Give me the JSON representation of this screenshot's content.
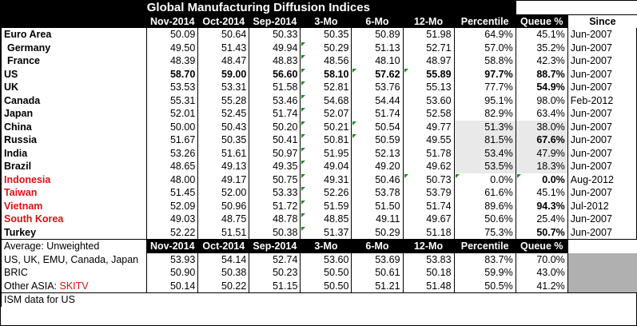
{
  "title": "Global Manufacturing Diffusion Indices",
  "columns": [
    "Nov-2014",
    "Oct-2014",
    "Sep-2014",
    "3-Mo",
    "6-Mo",
    "12-Mo",
    "Percentile",
    "Queue %",
    "Since"
  ],
  "rows": [
    {
      "name": "Euro Area",
      "v": [
        "50.09",
        "50.64",
        "50.33",
        "50.35",
        "50.89",
        "51.98",
        "64.9%",
        "45.1%"
      ],
      "since": "Jun-2007"
    },
    {
      "name": "Germany",
      "v": [
        "49.50",
        "51.43",
        "49.94",
        "50.29",
        "51.13",
        "52.71",
        "57.0%",
        "35.2%"
      ],
      "since": "Jun-2007"
    },
    {
      "name": "France",
      "v": [
        "48.39",
        "48.47",
        "48.83",
        "48.56",
        "48.10",
        "48.97",
        "58.8%",
        "42.3%"
      ],
      "since": "Jun-2007"
    },
    {
      "name": "US",
      "v": [
        "58.70",
        "59.00",
        "56.60",
        "58.10",
        "57.62",
        "55.89",
        "97.7%",
        "88.7%"
      ],
      "since": "Jun-2007"
    },
    {
      "name": "UK",
      "v": [
        "53.53",
        "53.31",
        "51.58",
        "52.81",
        "53.76",
        "55.13",
        "77.7%",
        "54.9%"
      ],
      "since": "Jun-2007"
    },
    {
      "name": "Canada",
      "v": [
        "55.31",
        "55.28",
        "53.46",
        "54.68",
        "54.44",
        "53.60",
        "95.1%",
        "98.0%"
      ],
      "since": "Feb-2012"
    },
    {
      "name": "Japan",
      "v": [
        "52.01",
        "52.45",
        "51.74",
        "52.07",
        "51.74",
        "52.58",
        "82.9%",
        "63.4%"
      ],
      "since": "Jun-2007"
    },
    {
      "name": "China",
      "v": [
        "50.00",
        "50.43",
        "50.20",
        "50.21",
        "50.54",
        "49.77",
        "51.3%",
        "38.0%"
      ],
      "since": "Jun-2007"
    },
    {
      "name": "Russia",
      "v": [
        "51.67",
        "50.35",
        "50.41",
        "50.81",
        "50.59",
        "49.55",
        "81.5%",
        "67.6%"
      ],
      "since": "Jun-2007"
    },
    {
      "name": "India",
      "v": [
        "53.26",
        "51.61",
        "50.97",
        "51.95",
        "52.13",
        "51.78",
        "53.4%",
        "47.9%"
      ],
      "since": "Jun-2007"
    },
    {
      "name": "Brazil",
      "v": [
        "48.65",
        "49.13",
        "49.35",
        "49.04",
        "49.20",
        "49.62",
        "53.5%",
        "18.3%"
      ],
      "since": "Jun-2007"
    },
    {
      "name": "Indonesia",
      "v": [
        "48.00",
        "49.17",
        "50.75",
        "49.31",
        "50.46",
        "50.73",
        "0.0%",
        "0.0%"
      ],
      "since": "Aug-2012"
    },
    {
      "name": "Taiwan",
      "v": [
        "51.45",
        "52.00",
        "53.33",
        "52.26",
        "53.78",
        "53.79",
        "61.6%",
        "45.1%"
      ],
      "since": "Jun-2007"
    },
    {
      "name": "Vietnam",
      "v": [
        "52.09",
        "50.96",
        "51.72",
        "51.59",
        "51.50",
        "51.74",
        "89.6%",
        "94.3%"
      ],
      "since": "Jul-2012"
    },
    {
      "name": "South Korea",
      "v": [
        "49.03",
        "48.75",
        "48.78",
        "48.85",
        "49.11",
        "49.67",
        "50.6%",
        "25.4%"
      ],
      "since": "Jun-2007"
    },
    {
      "name": "Turkey",
      "v": [
        "52.22",
        "51.51",
        "50.38",
        "51.37",
        "50.29",
        "51.18",
        "75.3%",
        "50.7%"
      ],
      "since": "Jun-2007"
    }
  ],
  "avg_header": "Average: Unweighted",
  "avg_rows": [
    {
      "name": "US, UK, EMU, Canada, Japan",
      "v": [
        "53.93",
        "54.14",
        "52.74",
        "53.60",
        "53.69",
        "53.83",
        "83.7%",
        "70.0%"
      ]
    },
    {
      "name": "BRIC",
      "v": [
        "50.90",
        "50.38",
        "50.23",
        "50.50",
        "50.61",
        "50.18",
        "59.9%",
        "43.0%"
      ]
    },
    {
      "name_prefix": "Other ASIA: ",
      "name_red": "SKITV",
      "v": [
        "50.14",
        "50.22",
        "51.15",
        "50.50",
        "51.21",
        "51.48",
        "50.5%",
        "41.2%"
      ]
    }
  ],
  "note": "ISM data for US"
}
